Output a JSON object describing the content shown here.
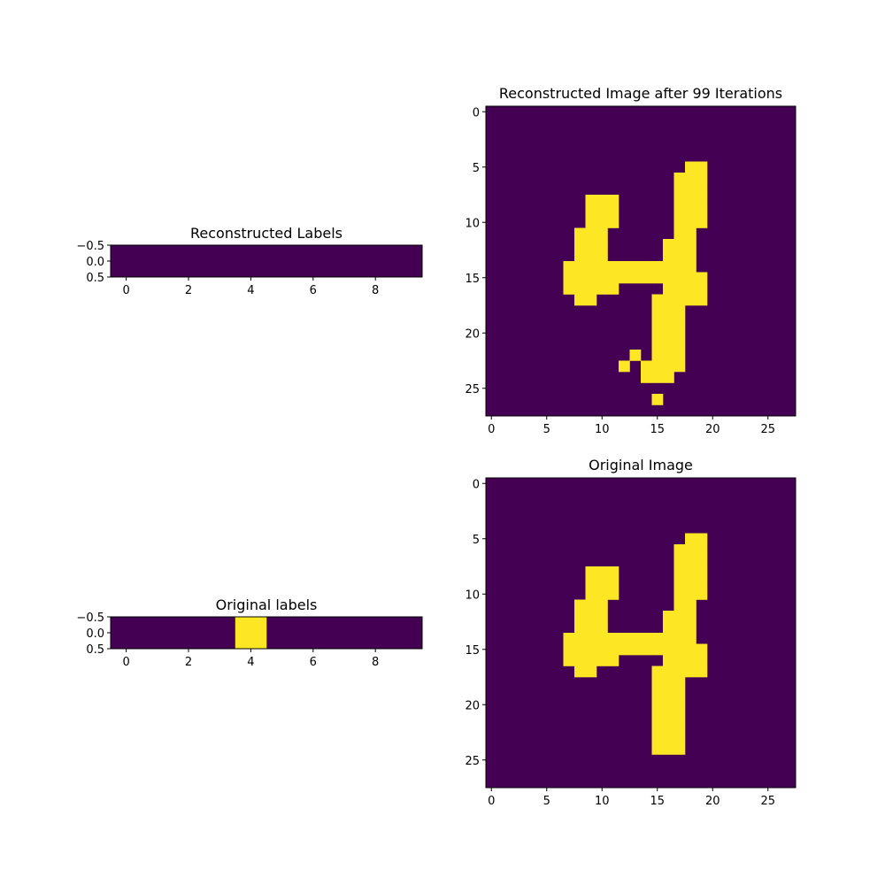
{
  "colors": {
    "off": "#440154",
    "on": "#fde725"
  },
  "chart_data": [
    {
      "type": "heatmap",
      "title": "Reconstructed Labels",
      "rows": 1,
      "cols": 10,
      "values": [
        [
          0,
          0,
          0,
          0,
          0,
          0,
          0,
          0,
          0,
          0
        ]
      ],
      "xticks": [
        0,
        2,
        4,
        6,
        8
      ],
      "yticks": [
        -0.5,
        0.0,
        0.5
      ],
      "ytick_labels": [
        "−0.5",
        "0.0",
        "0.5"
      ]
    },
    {
      "type": "heatmap",
      "title": "Reconstructed Image after 99 Iterations",
      "rows": 28,
      "cols": 28,
      "on_runs": [
        [
          5,
          18,
          19
        ],
        [
          6,
          17,
          19
        ],
        [
          7,
          17,
          19
        ],
        [
          8,
          9,
          11
        ],
        [
          8,
          17,
          19
        ],
        [
          9,
          9,
          11
        ],
        [
          9,
          17,
          19
        ],
        [
          10,
          9,
          11
        ],
        [
          10,
          17,
          19
        ],
        [
          11,
          8,
          10
        ],
        [
          11,
          17,
          18
        ],
        [
          12,
          8,
          10
        ],
        [
          12,
          16,
          18
        ],
        [
          13,
          8,
          10
        ],
        [
          13,
          16,
          18
        ],
        [
          14,
          7,
          18
        ],
        [
          15,
          7,
          19
        ],
        [
          16,
          7,
          11
        ],
        [
          16,
          16,
          19
        ],
        [
          17,
          8,
          9
        ],
        [
          17,
          15,
          19
        ],
        [
          18,
          15,
          17
        ],
        [
          19,
          15,
          17
        ],
        [
          20,
          15,
          17
        ],
        [
          21,
          15,
          17
        ],
        [
          22,
          13,
          13
        ],
        [
          22,
          15,
          17
        ],
        [
          23,
          12,
          12
        ],
        [
          23,
          14,
          17
        ],
        [
          24,
          14,
          16
        ],
        [
          26,
          15,
          15
        ]
      ],
      "xticks": [
        0,
        5,
        10,
        15,
        20,
        25
      ],
      "yticks": [
        0,
        5,
        10,
        15,
        20,
        25
      ]
    },
    {
      "type": "heatmap",
      "title": "Original labels",
      "rows": 1,
      "cols": 10,
      "values": [
        [
          0,
          0,
          0,
          0,
          1,
          0,
          0,
          0,
          0,
          0
        ]
      ],
      "xticks": [
        0,
        2,
        4,
        6,
        8
      ],
      "yticks": [
        -0.5,
        0.0,
        0.5
      ],
      "ytick_labels": [
        "−0.5",
        "0.0",
        "0.5"
      ]
    },
    {
      "type": "heatmap",
      "title": "Original Image",
      "rows": 28,
      "cols": 28,
      "on_runs": [
        [
          5,
          18,
          19
        ],
        [
          6,
          17,
          19
        ],
        [
          7,
          17,
          19
        ],
        [
          8,
          9,
          11
        ],
        [
          8,
          17,
          19
        ],
        [
          9,
          9,
          11
        ],
        [
          9,
          17,
          19
        ],
        [
          10,
          9,
          11
        ],
        [
          10,
          17,
          19
        ],
        [
          11,
          8,
          10
        ],
        [
          11,
          17,
          18
        ],
        [
          12,
          8,
          10
        ],
        [
          12,
          16,
          18
        ],
        [
          13,
          8,
          10
        ],
        [
          13,
          16,
          18
        ],
        [
          14,
          7,
          18
        ],
        [
          15,
          7,
          19
        ],
        [
          16,
          7,
          11
        ],
        [
          16,
          16,
          19
        ],
        [
          17,
          8,
          9
        ],
        [
          17,
          15,
          19
        ],
        [
          18,
          15,
          17
        ],
        [
          19,
          15,
          17
        ],
        [
          20,
          15,
          17
        ],
        [
          21,
          15,
          17
        ],
        [
          22,
          15,
          17
        ],
        [
          23,
          15,
          17
        ],
        [
          24,
          15,
          17
        ]
      ],
      "xticks": [
        0,
        5,
        10,
        15,
        20,
        25
      ],
      "yticks": [
        0,
        5,
        10,
        15,
        20,
        25
      ]
    }
  ]
}
